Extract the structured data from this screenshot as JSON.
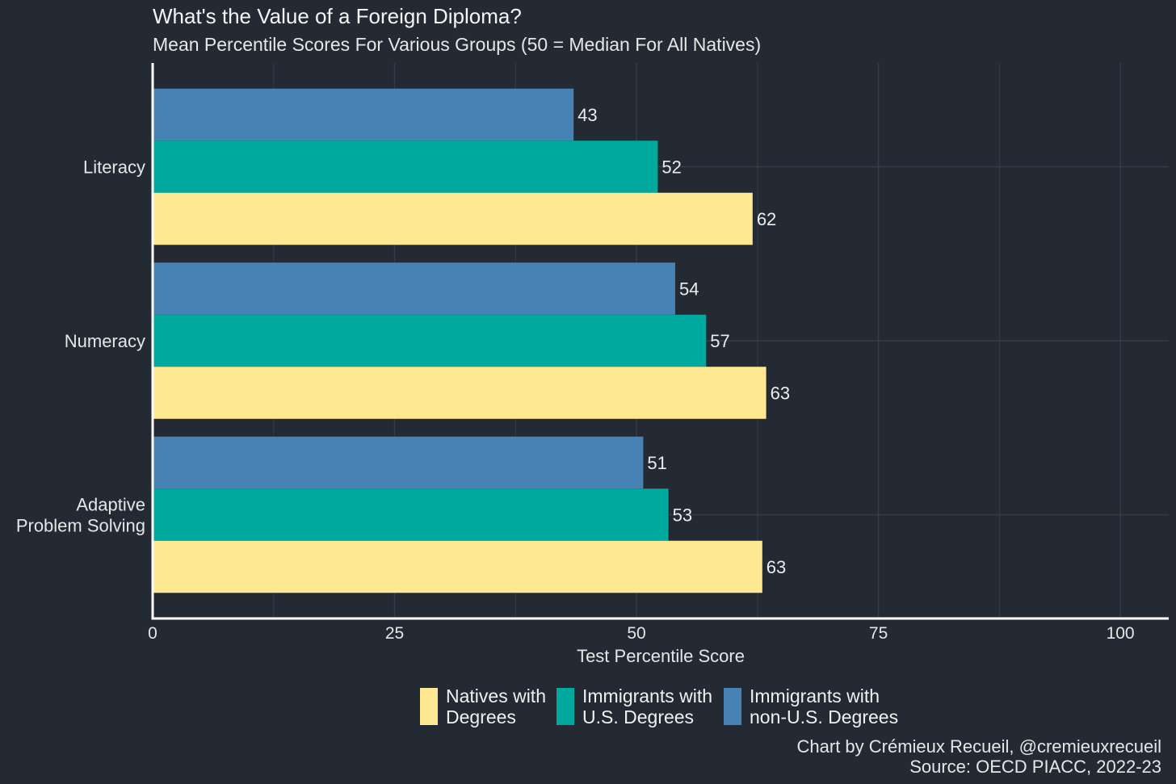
{
  "chart_data": {
    "type": "bar",
    "orientation": "horizontal",
    "title": "What's the Value of a Foreign Diploma?",
    "subtitle": "Mean Percentile Scores For Various Groups (50 = Median For All Natives)",
    "xlabel": "Test Percentile Score",
    "ylabel": "",
    "xlim": [
      0,
      105
    ],
    "xticks": [
      0,
      25,
      50,
      75,
      100
    ],
    "categories": [
      [
        "Literacy"
      ],
      [
        "Numeracy"
      ],
      [
        "Adaptive",
        "Problem Solving"
      ]
    ],
    "series": [
      {
        "name": "Immigrants with non-U.S. Degrees",
        "legend_lines": [
          "Immigrants with",
          "non-U.S. Degrees"
        ],
        "color": "#4682b4",
        "values": [
          43,
          54,
          51
        ],
        "display_values": [
          43.5,
          54,
          50.7
        ]
      },
      {
        "name": "Immigrants with U.S. Degrees",
        "legend_lines": [
          "Immigrants with",
          "U.S. Degrees"
        ],
        "color": "#00a99d",
        "values": [
          52,
          57,
          53
        ],
        "display_values": [
          52.2,
          57.2,
          53.3
        ]
      },
      {
        "name": "Natives with Degrees",
        "legend_lines": [
          "Natives with",
          "Degrees"
        ],
        "color": "#fee891",
        "values": [
          62,
          63,
          63
        ],
        "display_values": [
          62,
          63.4,
          63
        ]
      }
    ],
    "legend_order": [
      2,
      1,
      0
    ],
    "legend_position": "bottom",
    "grid": true
  },
  "caption": {
    "line1": "Chart by Crémieux Recueil, @cremieuxrecueil",
    "line2": "Source: OECD PIACC, 2022-23"
  },
  "colors": {
    "background": "#242a33",
    "grid": "#353c47",
    "axis": "#ffffff"
  }
}
